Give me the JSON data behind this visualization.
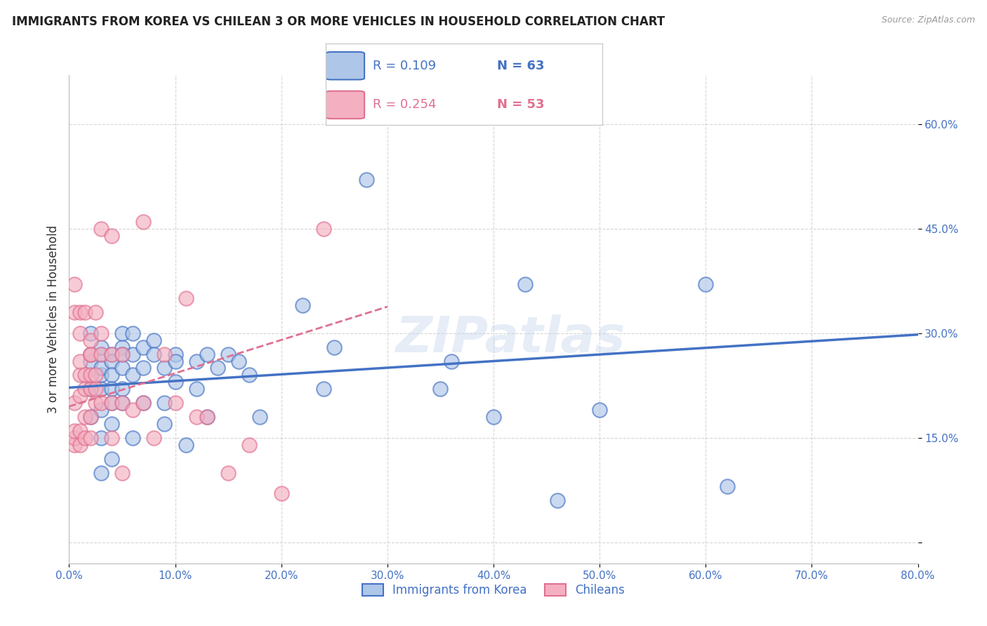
{
  "title": "IMMIGRANTS FROM KOREA VS CHILEAN 3 OR MORE VEHICLES IN HOUSEHOLD CORRELATION CHART",
  "source": "Source: ZipAtlas.com",
  "ylabel": "3 or more Vehicles in Household",
  "yticks": [
    0.0,
    0.15,
    0.3,
    0.45,
    0.6
  ],
  "ytick_labels": [
    "",
    "15.0%",
    "30.0%",
    "45.0%",
    "60.0%"
  ],
  "xticks": [
    0.0,
    0.1,
    0.2,
    0.3,
    0.4,
    0.5,
    0.6,
    0.7,
    0.8
  ],
  "xtick_labels": [
    "0.0%",
    "10.0%",
    "20.0%",
    "30.0%",
    "40.0%",
    "50.0%",
    "60.0%",
    "70.0%",
    "80.0%"
  ],
  "xlim": [
    0.0,
    0.8
  ],
  "ylim": [
    -0.03,
    0.67
  ],
  "legend_korea_r": "R = 0.109",
  "legend_korea_n": "N = 63",
  "legend_chile_r": "R = 0.254",
  "legend_chile_n": "N = 53",
  "legend_label_korea": "Immigrants from Korea",
  "legend_label_chile": "Chileans",
  "color_korea_fill": "#aec6e8",
  "color_korea_edge": "#4472c4",
  "color_chile_fill": "#f4afc0",
  "color_chile_edge": "#e07090",
  "color_korea_line": "#4472c4",
  "color_chile_line": "#e07090",
  "color_axis_labels": "#4472c4",
  "watermark": "ZIPatlas",
  "korea_x": [
    0.02,
    0.02,
    0.02,
    0.02,
    0.02,
    0.03,
    0.03,
    0.03,
    0.03,
    0.03,
    0.03,
    0.03,
    0.03,
    0.04,
    0.04,
    0.04,
    0.04,
    0.04,
    0.04,
    0.04,
    0.05,
    0.05,
    0.05,
    0.05,
    0.05,
    0.05,
    0.06,
    0.06,
    0.06,
    0.06,
    0.07,
    0.07,
    0.07,
    0.08,
    0.08,
    0.09,
    0.09,
    0.09,
    0.1,
    0.1,
    0.1,
    0.11,
    0.12,
    0.12,
    0.13,
    0.13,
    0.14,
    0.15,
    0.16,
    0.17,
    0.18,
    0.22,
    0.24,
    0.25,
    0.28,
    0.35,
    0.36,
    0.4,
    0.43,
    0.46,
    0.5,
    0.6,
    0.62
  ],
  "korea_y": [
    0.22,
    0.26,
    0.27,
    0.3,
    0.18,
    0.22,
    0.24,
    0.27,
    0.28,
    0.25,
    0.19,
    0.15,
    0.1,
    0.27,
    0.26,
    0.24,
    0.22,
    0.2,
    0.17,
    0.12,
    0.28,
    0.27,
    0.25,
    0.22,
    0.2,
    0.3,
    0.3,
    0.27,
    0.24,
    0.15,
    0.28,
    0.25,
    0.2,
    0.29,
    0.27,
    0.25,
    0.2,
    0.17,
    0.27,
    0.26,
    0.23,
    0.14,
    0.26,
    0.22,
    0.27,
    0.18,
    0.25,
    0.27,
    0.26,
    0.24,
    0.18,
    0.34,
    0.22,
    0.28,
    0.52,
    0.22,
    0.26,
    0.18,
    0.37,
    0.06,
    0.19,
    0.37,
    0.08
  ],
  "chile_x": [
    0.005,
    0.005,
    0.005,
    0.005,
    0.005,
    0.005,
    0.01,
    0.01,
    0.01,
    0.01,
    0.01,
    0.01,
    0.01,
    0.015,
    0.015,
    0.015,
    0.015,
    0.015,
    0.02,
    0.02,
    0.02,
    0.02,
    0.02,
    0.02,
    0.02,
    0.025,
    0.025,
    0.025,
    0.025,
    0.03,
    0.03,
    0.03,
    0.03,
    0.04,
    0.04,
    0.04,
    0.04,
    0.05,
    0.05,
    0.05,
    0.06,
    0.07,
    0.07,
    0.08,
    0.09,
    0.1,
    0.11,
    0.12,
    0.13,
    0.15,
    0.17,
    0.2,
    0.24
  ],
  "chile_y": [
    0.14,
    0.15,
    0.16,
    0.2,
    0.33,
    0.37,
    0.14,
    0.16,
    0.21,
    0.24,
    0.26,
    0.3,
    0.33,
    0.15,
    0.18,
    0.22,
    0.24,
    0.33,
    0.15,
    0.18,
    0.22,
    0.24,
    0.27,
    0.27,
    0.29,
    0.2,
    0.22,
    0.24,
    0.33,
    0.2,
    0.27,
    0.3,
    0.45,
    0.15,
    0.2,
    0.27,
    0.44,
    0.1,
    0.2,
    0.27,
    0.19,
    0.2,
    0.46,
    0.15,
    0.27,
    0.2,
    0.35,
    0.18,
    0.18,
    0.1,
    0.14,
    0.07,
    0.45
  ],
  "korea_trend_x": [
    0.0,
    0.8
  ],
  "korea_trend_y": [
    0.222,
    0.298
  ],
  "chile_trend_x": [
    0.0,
    0.3
  ],
  "chile_trend_y": [
    0.195,
    0.338
  ],
  "background_color": "#ffffff",
  "grid_color": "#cccccc"
}
